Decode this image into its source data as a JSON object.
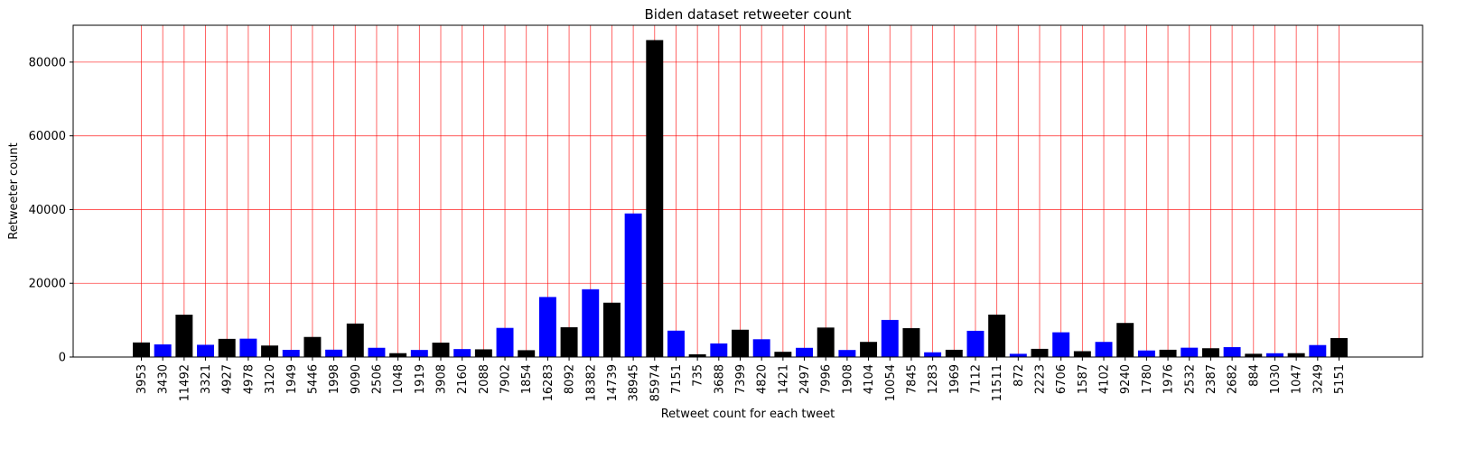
{
  "chart_data": {
    "type": "bar",
    "title": "Biden dataset retweeter count",
    "xlabel": "Retweet count for each tweet",
    "ylabel": "Retweeter count",
    "ylim": [
      0,
      90000
    ],
    "yticks": [
      0,
      20000,
      40000,
      60000,
      80000
    ],
    "grid": true,
    "grid_color": "#ff0000",
    "bar_colors": [
      "#000000",
      "#0000ff"
    ],
    "categories": [
      "3953",
      "3430",
      "11492",
      "3321",
      "4927",
      "4978",
      "3120",
      "1949",
      "5446",
      "1998",
      "9090",
      "2506",
      "1048",
      "1919",
      "3908",
      "2160",
      "2088",
      "7902",
      "1854",
      "16283",
      "8092",
      "18382",
      "14739",
      "38945",
      "85974",
      "7151",
      "735",
      "3688",
      "7399",
      "4820",
      "1421",
      "2497",
      "7996",
      "1908",
      "4104",
      "10054",
      "7845",
      "1283",
      "1969",
      "7112",
      "11511",
      "872",
      "2223",
      "6706",
      "1587",
      "4102",
      "9240",
      "1780",
      "1976",
      "2532",
      "2387",
      "2682",
      "884",
      "1030",
      "1047",
      "3249",
      "5151"
    ],
    "values": [
      3953,
      3430,
      11492,
      3321,
      4927,
      4978,
      3120,
      1949,
      5446,
      1998,
      9090,
      2506,
      1048,
      1919,
      3908,
      2160,
      2088,
      7902,
      1854,
      16283,
      8092,
      18382,
      14739,
      38945,
      85974,
      7151,
      735,
      3688,
      7399,
      4820,
      1421,
      2497,
      7996,
      1908,
      4104,
      10054,
      7845,
      1283,
      1969,
      7112,
      11511,
      872,
      2223,
      6706,
      1587,
      4102,
      9240,
      1780,
      1976,
      2532,
      2387,
      2682,
      884,
      1030,
      1047,
      3249,
      5151
    ]
  }
}
